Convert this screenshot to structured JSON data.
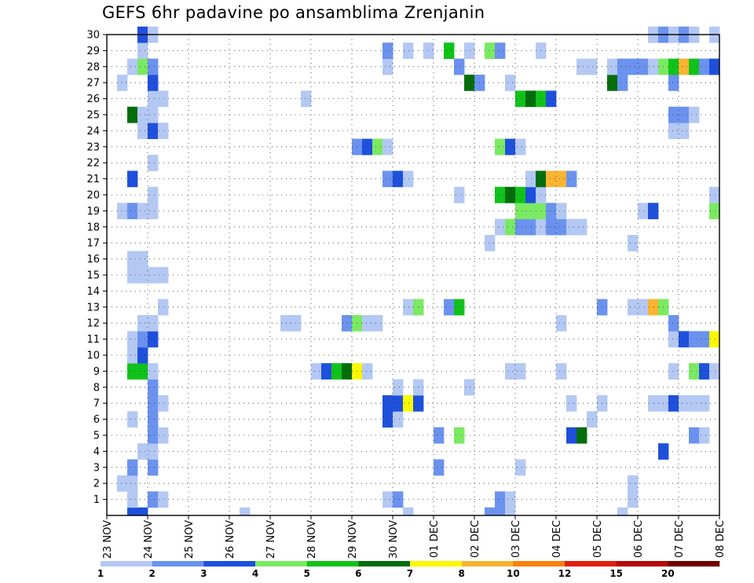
{
  "chart_data": {
    "type": "heatmap",
    "title": "GEFS 6hr padavine po ansamblima Zrenjanin",
    "ylabel": "",
    "xlabel": "",
    "x_tick_labels": [
      "23 NOV",
      "24 NOV",
      "25 NOV",
      "26 NOV",
      "27 NOV",
      "28 NOV",
      "29 NOV",
      "30 NOV",
      "01 DEC",
      "02 DEC",
      "03 DEC",
      "04 DEC",
      "05 DEC",
      "06 DEC",
      "07 DEC",
      "08 DEC"
    ],
    "y_tick_labels": [
      "1",
      "2",
      "3",
      "4",
      "5",
      "6",
      "7",
      "8",
      "9",
      "10",
      "11",
      "12",
      "13",
      "14",
      "15",
      "16",
      "17",
      "18",
      "19",
      "20",
      "21",
      "22",
      "23",
      "24",
      "25",
      "26",
      "27",
      "28",
      "29",
      "30"
    ],
    "ylim": [
      0,
      30
    ],
    "time_steps": 60,
    "grid": true,
    "colorbar": {
      "thresholds": [
        "1",
        "2",
        "3",
        "4",
        "5",
        "6",
        "7",
        "8",
        "10",
        "12",
        "15",
        "20"
      ],
      "colors": [
        "#b4c8f4",
        "#6a92ee",
        "#1e50dc",
        "#7aea62",
        "#10c21a",
        "#046e0c",
        "#faf800",
        "#fab432",
        "#f8800e",
        "#e01e0e",
        "#b40a0a",
        "#6e0000"
      ]
    },
    "cells": [
      [
        0,
        2,
        3
      ],
      [
        0,
        3,
        3
      ],
      [
        0,
        13,
        1
      ],
      [
        0,
        29,
        1
      ],
      [
        0,
        37,
        2
      ],
      [
        0,
        38,
        2
      ],
      [
        0,
        39,
        1
      ],
      [
        0,
        50,
        1
      ],
      [
        1,
        2,
        1
      ],
      [
        1,
        4,
        2
      ],
      [
        1,
        5,
        1
      ],
      [
        1,
        27,
        1
      ],
      [
        1,
        28,
        2
      ],
      [
        1,
        38,
        2
      ],
      [
        1,
        39,
        1
      ],
      [
        1,
        51,
        1
      ],
      [
        2,
        1,
        1
      ],
      [
        2,
        2,
        1
      ],
      [
        2,
        51,
        1
      ],
      [
        3,
        2,
        2
      ],
      [
        3,
        4,
        2
      ],
      [
        3,
        32,
        2
      ],
      [
        3,
        40,
        1
      ],
      [
        4,
        3,
        1
      ],
      [
        4,
        4,
        1
      ],
      [
        4,
        54,
        3
      ],
      [
        5,
        4,
        2
      ],
      [
        5,
        5,
        1
      ],
      [
        5,
        32,
        2
      ],
      [
        5,
        34,
        4
      ],
      [
        5,
        45,
        3
      ],
      [
        5,
        46,
        6
      ],
      [
        5,
        57,
        2
      ],
      [
        5,
        58,
        1
      ],
      [
        6,
        2,
        1
      ],
      [
        6,
        4,
        2
      ],
      [
        6,
        27,
        3
      ],
      [
        6,
        28,
        1
      ],
      [
        6,
        47,
        1
      ],
      [
        7,
        4,
        2
      ],
      [
        7,
        5,
        1
      ],
      [
        7,
        27,
        3
      ],
      [
        7,
        28,
        3
      ],
      [
        7,
        29,
        7
      ],
      [
        7,
        30,
        3
      ],
      [
        7,
        45,
        1
      ],
      [
        7,
        48,
        1
      ],
      [
        7,
        53,
        1
      ],
      [
        7,
        54,
        1
      ],
      [
        7,
        55,
        3
      ],
      [
        7,
        56,
        1
      ],
      [
        7,
        57,
        1
      ],
      [
        7,
        58,
        1
      ],
      [
        8,
        4,
        2
      ],
      [
        8,
        28,
        1
      ],
      [
        8,
        30,
        1
      ],
      [
        8,
        35,
        1
      ],
      [
        9,
        2,
        5
      ],
      [
        9,
        3,
        5
      ],
      [
        9,
        4,
        1
      ],
      [
        9,
        20,
        1
      ],
      [
        9,
        21,
        3
      ],
      [
        9,
        22,
        5
      ],
      [
        9,
        23,
        6
      ],
      [
        9,
        24,
        7
      ],
      [
        9,
        25,
        1
      ],
      [
        9,
        39,
        1
      ],
      [
        9,
        40,
        1
      ],
      [
        9,
        44,
        1
      ],
      [
        9,
        55,
        1
      ],
      [
        9,
        57,
        4
      ],
      [
        9,
        58,
        3
      ],
      [
        9,
        59,
        1
      ],
      [
        10,
        2,
        1
      ],
      [
        10,
        3,
        3
      ],
      [
        11,
        2,
        1
      ],
      [
        11,
        3,
        2
      ],
      [
        11,
        4,
        3
      ],
      [
        11,
        55,
        1
      ],
      [
        11,
        56,
        3
      ],
      [
        11,
        57,
        2
      ],
      [
        11,
        58,
        2
      ],
      [
        11,
        59,
        7
      ],
      [
        12,
        3,
        1
      ],
      [
        12,
        4,
        1
      ],
      [
        12,
        17,
        1
      ],
      [
        12,
        18,
        1
      ],
      [
        12,
        23,
        2
      ],
      [
        12,
        24,
        4
      ],
      [
        12,
        25,
        1
      ],
      [
        12,
        26,
        1
      ],
      [
        12,
        44,
        1
      ],
      [
        12,
        55,
        2
      ],
      [
        13,
        5,
        1
      ],
      [
        13,
        29,
        1
      ],
      [
        13,
        30,
        4
      ],
      [
        13,
        33,
        2
      ],
      [
        13,
        34,
        5
      ],
      [
        13,
        48,
        2
      ],
      [
        13,
        51,
        1
      ],
      [
        13,
        52,
        1
      ],
      [
        13,
        53,
        8
      ],
      [
        13,
        54,
        4
      ],
      [
        15,
        2,
        1
      ],
      [
        15,
        3,
        1
      ],
      [
        15,
        4,
        1
      ],
      [
        15,
        5,
        1
      ],
      [
        16,
        2,
        1
      ],
      [
        16,
        3,
        1
      ],
      [
        17,
        37,
        1
      ],
      [
        17,
        51,
        1
      ],
      [
        18,
        38,
        1
      ],
      [
        18,
        39,
        4
      ],
      [
        18,
        40,
        2
      ],
      [
        18,
        41,
        2
      ],
      [
        18,
        42,
        1
      ],
      [
        18,
        43,
        2
      ],
      [
        18,
        44,
        2
      ],
      [
        18,
        45,
        1
      ],
      [
        18,
        46,
        1
      ],
      [
        19,
        1,
        1
      ],
      [
        19,
        2,
        2
      ],
      [
        19,
        3,
        1
      ],
      [
        19,
        4,
        1
      ],
      [
        19,
        40,
        4
      ],
      [
        19,
        41,
        4
      ],
      [
        19,
        42,
        4
      ],
      [
        19,
        43,
        2
      ],
      [
        19,
        44,
        1
      ],
      [
        19,
        52,
        1
      ],
      [
        19,
        53,
        3
      ],
      [
        19,
        59,
        4
      ],
      [
        20,
        4,
        1
      ],
      [
        20,
        34,
        1
      ],
      [
        20,
        38,
        5
      ],
      [
        20,
        39,
        6
      ],
      [
        20,
        40,
        5
      ],
      [
        20,
        41,
        3
      ],
      [
        20,
        42,
        1
      ],
      [
        20,
        59,
        1
      ],
      [
        21,
        2,
        3
      ],
      [
        21,
        27,
        2
      ],
      [
        21,
        28,
        3
      ],
      [
        21,
        29,
        1
      ],
      [
        21,
        41,
        1
      ],
      [
        21,
        42,
        6
      ],
      [
        21,
        43,
        8
      ],
      [
        21,
        44,
        8
      ],
      [
        21,
        45,
        2
      ],
      [
        22,
        4,
        1
      ],
      [
        23,
        24,
        2
      ],
      [
        23,
        25,
        3
      ],
      [
        23,
        26,
        4
      ],
      [
        23,
        27,
        1
      ],
      [
        23,
        38,
        4
      ],
      [
        23,
        39,
        3
      ],
      [
        23,
        40,
        1
      ],
      [
        24,
        3,
        1
      ],
      [
        24,
        4,
        3
      ],
      [
        24,
        5,
        1
      ],
      [
        24,
        55,
        1
      ],
      [
        24,
        56,
        1
      ],
      [
        25,
        2,
        6
      ],
      [
        25,
        3,
        1
      ],
      [
        25,
        4,
        1
      ],
      [
        25,
        55,
        2
      ],
      [
        25,
        56,
        2
      ],
      [
        25,
        57,
        1
      ],
      [
        26,
        4,
        1
      ],
      [
        26,
        5,
        1
      ],
      [
        26,
        19,
        1
      ],
      [
        26,
        40,
        5
      ],
      [
        26,
        41,
        6
      ],
      [
        26,
        42,
        5
      ],
      [
        26,
        43,
        3
      ],
      [
        27,
        1,
        1
      ],
      [
        27,
        4,
        3
      ],
      [
        27,
        35,
        6
      ],
      [
        27,
        36,
        2
      ],
      [
        27,
        39,
        1
      ],
      [
        27,
        49,
        6
      ],
      [
        27,
        50,
        2
      ],
      [
        27,
        55,
        2
      ],
      [
        28,
        2,
        1
      ],
      [
        28,
        3,
        4
      ],
      [
        28,
        4,
        2
      ],
      [
        28,
        27,
        1
      ],
      [
        28,
        34,
        2
      ],
      [
        28,
        46,
        1
      ],
      [
        28,
        47,
        1
      ],
      [
        28,
        49,
        1
      ],
      [
        28,
        50,
        2
      ],
      [
        28,
        51,
        2
      ],
      [
        28,
        52,
        2
      ],
      [
        28,
        53,
        1
      ],
      [
        28,
        54,
        4
      ],
      [
        28,
        55,
        5
      ],
      [
        28,
        56,
        8
      ],
      [
        28,
        57,
        5
      ],
      [
        28,
        58,
        2
      ],
      [
        28,
        59,
        3
      ],
      [
        29,
        3,
        1
      ],
      [
        29,
        27,
        2
      ],
      [
        29,
        29,
        1
      ],
      [
        29,
        31,
        1
      ],
      [
        29,
        33,
        5
      ],
      [
        29,
        35,
        1
      ],
      [
        29,
        37,
        4
      ],
      [
        29,
        38,
        2
      ],
      [
        29,
        42,
        1
      ],
      [
        30,
        3,
        3
      ],
      [
        30,
        4,
        1
      ],
      [
        30,
        53,
        1
      ],
      [
        30,
        54,
        2
      ],
      [
        30,
        55,
        1
      ],
      [
        30,
        56,
        2
      ],
      [
        30,
        57,
        1
      ],
      [
        30,
        59,
        1
      ]
    ]
  }
}
